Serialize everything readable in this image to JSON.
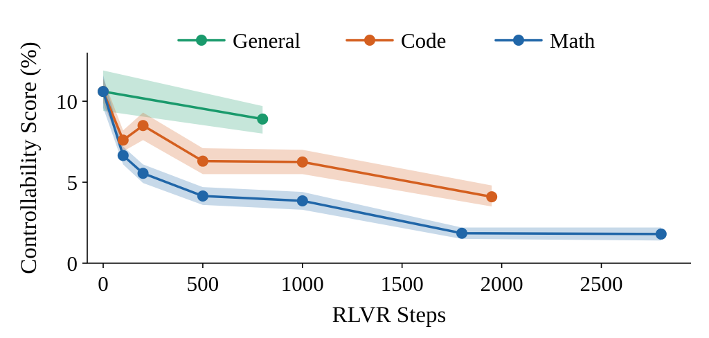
{
  "chart_data": {
    "type": "line",
    "title": "",
    "xlabel": "RLVR Steps",
    "ylabel": "Controllability Score (%)",
    "xlim": [
      -80,
      2950
    ],
    "ylim": [
      0,
      13
    ],
    "x_ticks": [
      0,
      500,
      1000,
      1500,
      2000,
      2500
    ],
    "y_ticks": [
      0,
      5,
      10
    ],
    "grid": false,
    "legend_position": "top-center",
    "series": [
      {
        "name": "General",
        "color": "#1a9a6c",
        "x": [
          0,
          800
        ],
        "y": [
          10.6,
          8.9
        ],
        "lower": [
          9.4,
          8.0
        ],
        "upper": [
          11.9,
          9.7
        ]
      },
      {
        "name": "Code",
        "color": "#d45f1f",
        "x": [
          0,
          100,
          200,
          500,
          1000,
          1950
        ],
        "y": [
          10.6,
          7.6,
          8.5,
          6.3,
          6.25,
          4.1
        ],
        "lower": [
          9.9,
          6.9,
          7.6,
          5.5,
          5.5,
          3.5
        ],
        "upper": [
          11.4,
          8.2,
          9.3,
          7.1,
          7.0,
          4.8
        ]
      },
      {
        "name": "Math",
        "color": "#2066a8",
        "x": [
          0,
          100,
          200,
          500,
          1000,
          1800,
          2800
        ],
        "y": [
          10.6,
          6.65,
          5.55,
          4.15,
          3.85,
          1.85,
          1.8
        ],
        "lower": [
          9.6,
          6.1,
          4.95,
          3.6,
          3.3,
          1.5,
          1.4
        ],
        "upper": [
          11.6,
          7.2,
          6.1,
          4.7,
          4.4,
          2.2,
          2.2
        ]
      }
    ]
  }
}
